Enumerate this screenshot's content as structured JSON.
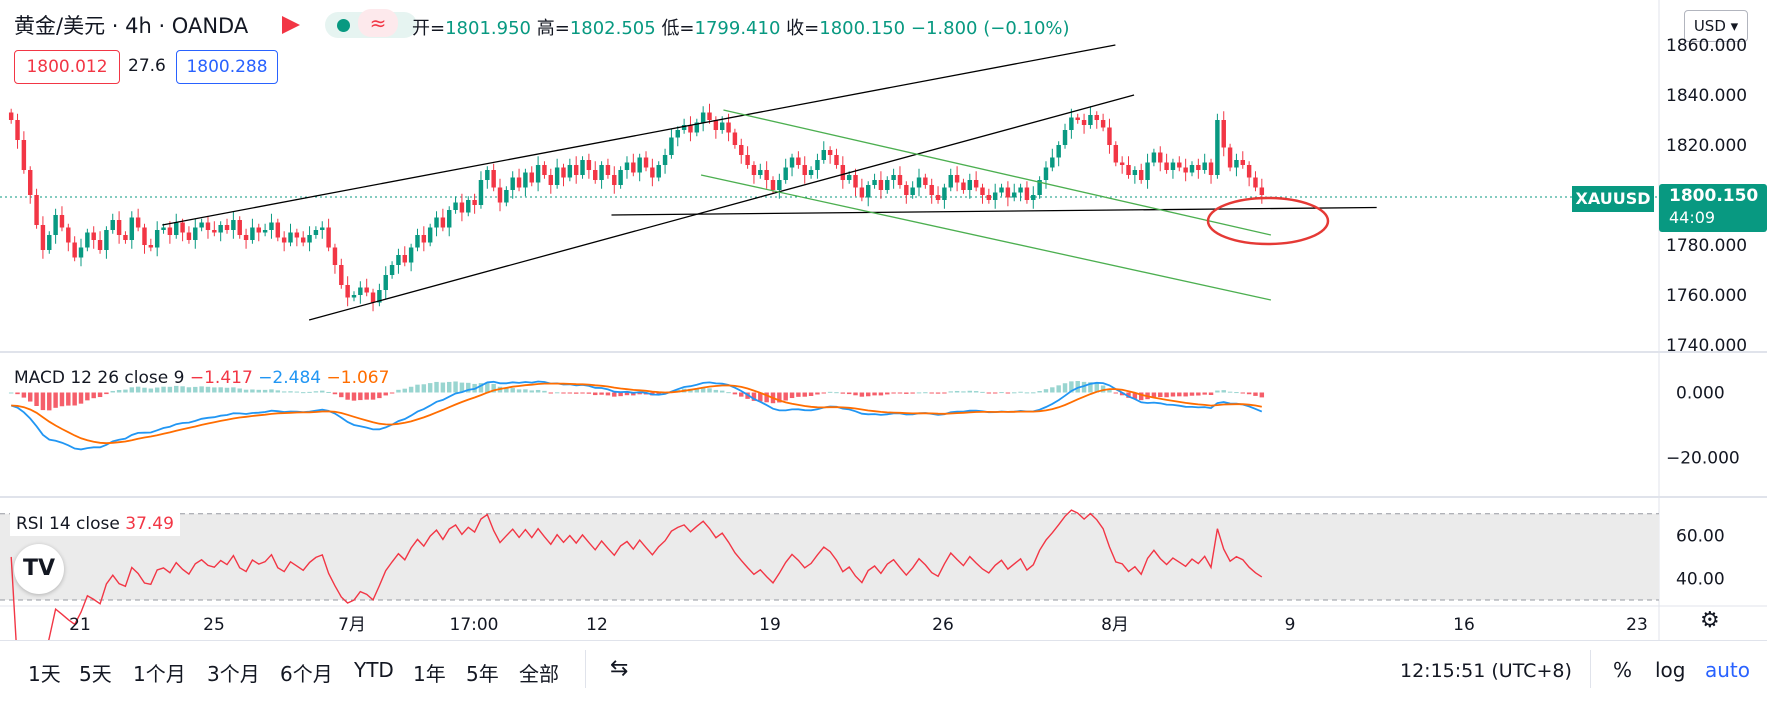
{
  "header": {
    "symbol_title": "黄金/美元 · 4h · OANDA",
    "ohlc": {
      "open_label": "开=",
      "open": "1801.950",
      "high_label": "高=",
      "high": "1802.505",
      "low_label": "低=",
      "low": "1799.410",
      "close_label": "收=",
      "close": "1800.150",
      "change": "−1.800 (−0.10%)"
    },
    "sell_price": "1800.012",
    "spread": "27.6",
    "buy_price": "1800.288",
    "currency": "USD",
    "approx_icon": "≈"
  },
  "price_axis": {
    "ticks": [
      "1860.000",
      "1840.000",
      "1820.000",
      "1800.000",
      "1780.000",
      "1760.000",
      "1740.000"
    ],
    "current_symbol": "XAUUSD",
    "current_price": "1800.150",
    "countdown": "44:09"
  },
  "macd": {
    "label": "MACD 12 26 close 9",
    "v1": "−1.417",
    "v2": "−2.484",
    "v3": "−1.067",
    "ticks": [
      "0.000",
      "−20.000"
    ]
  },
  "rsi": {
    "label": "RSI 14 close",
    "value": "37.49",
    "ticks": [
      "60.00",
      "40.00"
    ]
  },
  "time_axis": {
    "labels": [
      "21",
      "25",
      "7月",
      "17:00",
      "12",
      "19",
      "26",
      "8月",
      "9",
      "16",
      "23"
    ]
  },
  "bottom": {
    "ranges": [
      "1天",
      "5天",
      "1个月",
      "3个月",
      "6个月",
      "YTD",
      "1年",
      "5年",
      "全部"
    ],
    "clock": "12:15:51 (UTC+8)",
    "percent": "%",
    "log": "log",
    "auto": "auto"
  },
  "colors": {
    "up": "#089981",
    "down": "#f23645",
    "macd": "#2196f3",
    "signal": "#ff6d00",
    "rsi": "#f23645",
    "trend_black": "#000000",
    "trend_green": "#4caf50",
    "circle": "#e53935"
  },
  "chart_data": {
    "type": "candlestick",
    "ylim": [
      1740,
      1860
    ],
    "candles_close": [
      1830,
      1822,
      1810,
      1800,
      1788,
      1778,
      1784,
      1792,
      1787,
      1781,
      1775,
      1779,
      1785,
      1782,
      1778,
      1786,
      1790,
      1784,
      1782,
      1791,
      1787,
      1780,
      1779,
      1786,
      1787,
      1784,
      1789,
      1785,
      1782,
      1787,
      1789,
      1786,
      1785,
      1788,
      1786,
      1790,
      1784,
      1782,
      1787,
      1785,
      1786,
      1789,
      1783,
      1781,
      1785,
      1783,
      1781,
      1784,
      1786,
      1787,
      1779,
      1772,
      1764,
      1759,
      1760,
      1763,
      1761,
      1757,
      1762,
      1768,
      1772,
      1776,
      1773,
      1779,
      1784,
      1781,
      1787,
      1791,
      1787,
      1794,
      1797,
      1793,
      1798,
      1796,
      1806,
      1810,
      1803,
      1797,
      1802,
      1807,
      1803,
      1809,
      1805,
      1812,
      1808,
      1804,
      1811,
      1807,
      1812,
      1808,
      1814,
      1810,
      1806,
      1812,
      1808,
      1804,
      1810,
      1813,
      1809,
      1815,
      1811,
      1807,
      1812,
      1816,
      1823,
      1826,
      1828,
      1825,
      1829,
      1833,
      1830,
      1826,
      1829,
      1825,
      1820,
      1816,
      1812,
      1808,
      1810,
      1806,
      1802,
      1806,
      1811,
      1815,
      1812,
      1808,
      1810,
      1814,
      1818,
      1816,
      1812,
      1806,
      1808,
      1803,
      1799,
      1804,
      1806,
      1802,
      1806,
      1808,
      1804,
      1800,
      1803,
      1807,
      1804,
      1800,
      1798,
      1803,
      1808,
      1805,
      1802,
      1806,
      1803,
      1800,
      1798,
      1801,
      1803,
      1799,
      1801,
      1803,
      1798,
      1800,
      1806,
      1811,
      1815,
      1820,
      1826,
      1831,
      1830,
      1828,
      1832,
      1830,
      1827,
      1820,
      1813,
      1812,
      1808,
      1810,
      1806,
      1813,
      1817,
      1813,
      1810,
      1813,
      1811,
      1809,
      1812,
      1810,
      1813,
      1808,
      1830,
      1819,
      1811,
      1814,
      1812,
      1807,
      1803,
      1800
    ],
    "trend_lines": [
      {
        "color": "black",
        "from": [
          0.124,
          1788
        ],
        "to": [
          0.89,
          1860
        ]
      },
      {
        "color": "black",
        "from": [
          0.242,
          1750
        ],
        "to": [
          0.905,
          1840
        ]
      },
      {
        "color": "black",
        "from": [
          0.485,
          1792
        ],
        "to": [
          1.1,
          1795
        ]
      },
      {
        "color": "green",
        "from": [
          0.575,
          1834
        ],
        "to": [
          1.015,
          1784
        ]
      },
      {
        "color": "green",
        "from": [
          0.557,
          1808
        ],
        "to": [
          1.015,
          1758
        ]
      }
    ],
    "macd_ylim": [
      -30,
      10
    ],
    "rsi_ylim": [
      30,
      75
    ],
    "rsi_bands": [
      70,
      30
    ]
  }
}
